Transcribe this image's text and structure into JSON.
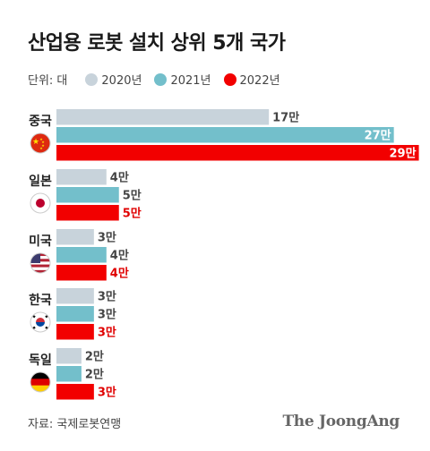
{
  "title": "산업용 로봇 설치 상위 5개 국가",
  "legend": {
    "unit": "단위: 대",
    "items": [
      {
        "label": "2020년",
        "color": "#c8d3db"
      },
      {
        "label": "2021년",
        "color": "#73bfcb"
      },
      {
        "label": "2022년",
        "color": "#f20000"
      }
    ]
  },
  "chart_data": {
    "type": "bar",
    "orientation": "horizontal",
    "unit": "대",
    "categories": [
      "중국",
      "일본",
      "미국",
      "한국",
      "독일"
    ],
    "series": [
      {
        "name": "2020년",
        "color": "#c8d3db",
        "values": [
          17,
          4,
          3,
          3,
          2
        ],
        "labels": [
          "17만",
          "4만",
          "3만",
          "3만",
          "2만"
        ]
      },
      {
        "name": "2021년",
        "color": "#73bfcb",
        "values": [
          27,
          5,
          4,
          3,
          2
        ],
        "labels": [
          "27만",
          "5만",
          "4만",
          "3만",
          "2만"
        ]
      },
      {
        "name": "2022년",
        "color": "#f20000",
        "values": [
          29,
          5,
          4,
          3,
          3
        ],
        "labels": [
          "29만",
          "5만",
          "4만",
          "3만",
          "3만"
        ]
      }
    ],
    "flags": [
      "china-flag-icon",
      "japan-flag-icon",
      "usa-flag-icon",
      "korea-flag-icon",
      "germany-flag-icon"
    ]
  },
  "footer": {
    "source": "자료: 국제로봇연맹",
    "logo": "The JoongAng"
  }
}
